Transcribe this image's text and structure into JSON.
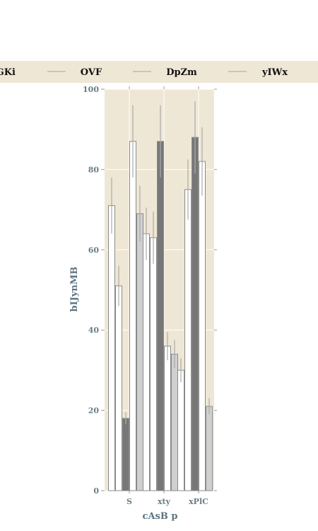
{
  "chart_data": {
    "type": "bar",
    "title": "",
    "xlabel": "cAsB p",
    "ylabel": "bIJynMB",
    "ylim": [
      0,
      100
    ],
    "yticks": [
      0,
      20,
      40,
      60,
      80,
      100
    ],
    "grid": true,
    "legend_position": "top",
    "categories": [
      "S",
      "xty",
      "xPlC"
    ],
    "series": [
      {
        "name": "GKi",
        "values": [
          71,
          64,
          30
        ],
        "errors": [
          7,
          6.5,
          3
        ],
        "color": "#ffffff"
      },
      {
        "name": "",
        "values": [
          51,
          63,
          75
        ],
        "errors": [
          5,
          6.5,
          7.5
        ],
        "color": "#ffffff"
      },
      {
        "name": "",
        "values": [
          18,
          87,
          88
        ],
        "errors": [
          1.5,
          9,
          9
        ],
        "color": "#777777"
      },
      {
        "name": "OVF",
        "values": [
          87,
          36,
          82
        ],
        "errors": [
          9,
          3.5,
          8.5
        ],
        "color": "#ffffff"
      },
      {
        "name": "DpZm",
        "values": [
          69,
          34,
          21
        ],
        "errors": [
          7,
          3.5,
          2
        ],
        "color": "#d0d0d0"
      },
      {
        "name": "yIWx",
        "values": [
          0,
          0,
          0
        ],
        "errors": [
          0,
          0,
          0
        ],
        "color": "#ffffff"
      }
    ],
    "colors": {
      "plot_background": "#efe7d5",
      "legend_background": "#efe7d5",
      "grid": "#ffffff",
      "bar_edge": "#8a8a8a",
      "error_bar": "#aaaaaa",
      "tick_text": "#6b7c86"
    }
  }
}
